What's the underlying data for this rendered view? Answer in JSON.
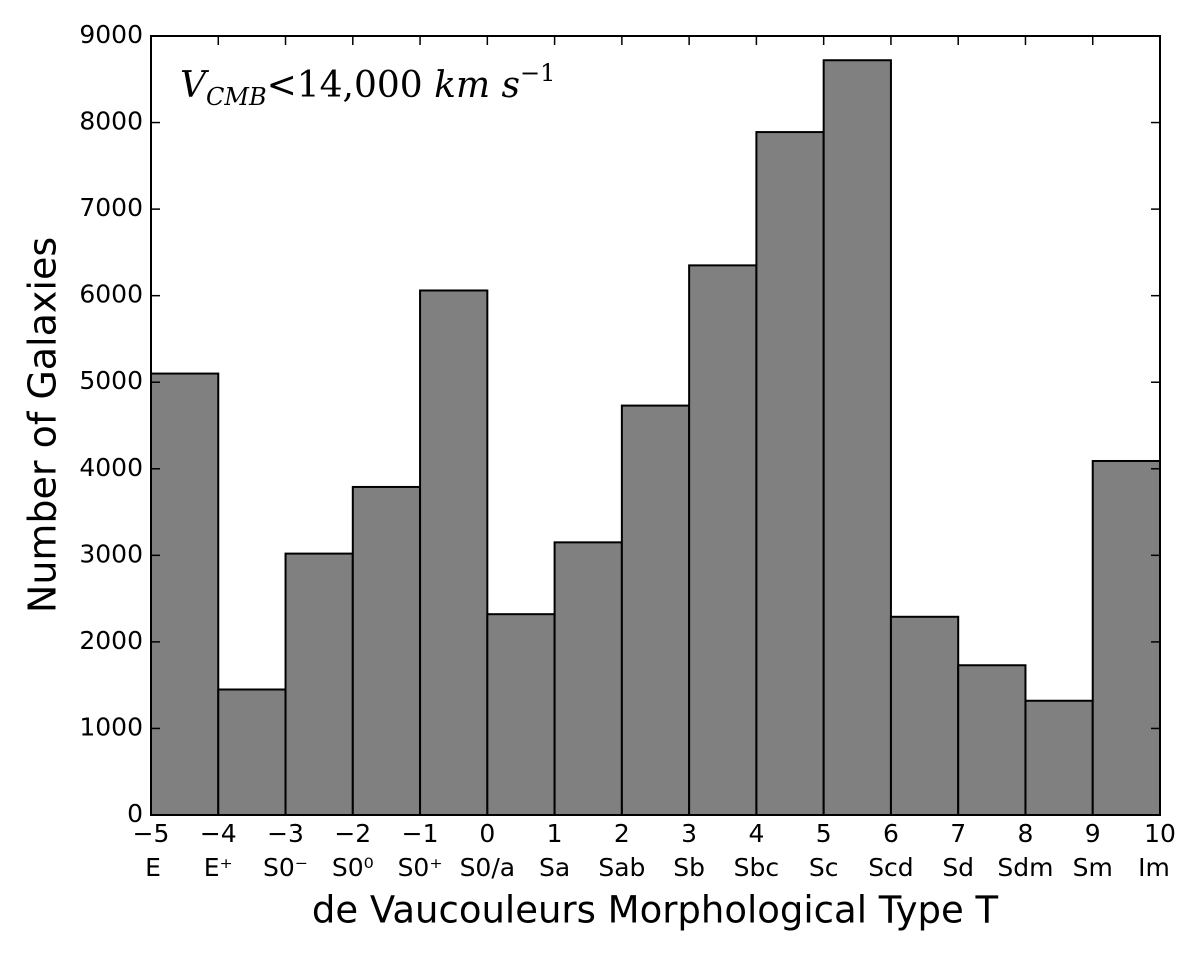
{
  "chart_data": {
    "type": "histogram",
    "bins": [
      -5,
      -4,
      -3,
      -2,
      -1,
      0,
      1,
      2,
      3,
      4,
      5,
      6,
      7,
      8,
      9,
      10
    ],
    "values": [
      5100,
      1450,
      3020,
      3790,
      6060,
      2320,
      3150,
      4730,
      6350,
      7890,
      8720,
      2290,
      1730,
      1320,
      4090
    ],
    "color": "#808080",
    "xlim": [
      -5,
      10
    ],
    "xticks": [
      {
        "value": -5,
        "label": "−5"
      },
      {
        "value": -4,
        "label": "−4"
      },
      {
        "value": -3,
        "label": "−3"
      },
      {
        "value": -2,
        "label": "−2"
      },
      {
        "value": -1,
        "label": "−1"
      },
      0,
      1,
      2,
      3,
      4,
      5,
      6,
      7,
      8,
      9,
      10
    ],
    "type_labels": [
      "E",
      "E⁺",
      "S0⁻",
      "S0⁰",
      "S0⁺",
      "S0/a",
      "Sa",
      "Sab",
      "Sb",
      "Sbc",
      "Sc",
      "Scd",
      "Sd",
      "Sdm",
      "Sm",
      "Im"
    ],
    "ylim": [
      0,
      9000
    ],
    "yticks": [
      0,
      1000,
      2000,
      3000,
      4000,
      5000,
      6000,
      7000,
      8000,
      9000
    ],
    "xlabel": "de Vaucouleurs Morphological Type T",
    "ylabel": "Number of Galaxies",
    "annotation": [
      "V",
      "CMB",
      "<14,000 ",
      "km s",
      "−1"
    ],
    "grid": false
  }
}
